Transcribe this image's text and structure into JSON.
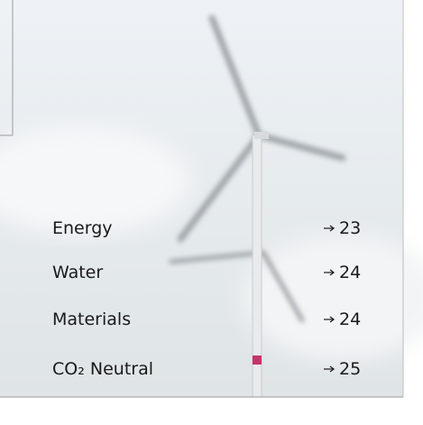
{
  "toc": {
    "entries": [
      {
        "label": "Energy",
        "page": "23"
      },
      {
        "label": "Water",
        "page": "24"
      },
      {
        "label": "Materials",
        "page": "24"
      },
      {
        "label": "CO₂ Neutral",
        "page": "25"
      }
    ]
  }
}
